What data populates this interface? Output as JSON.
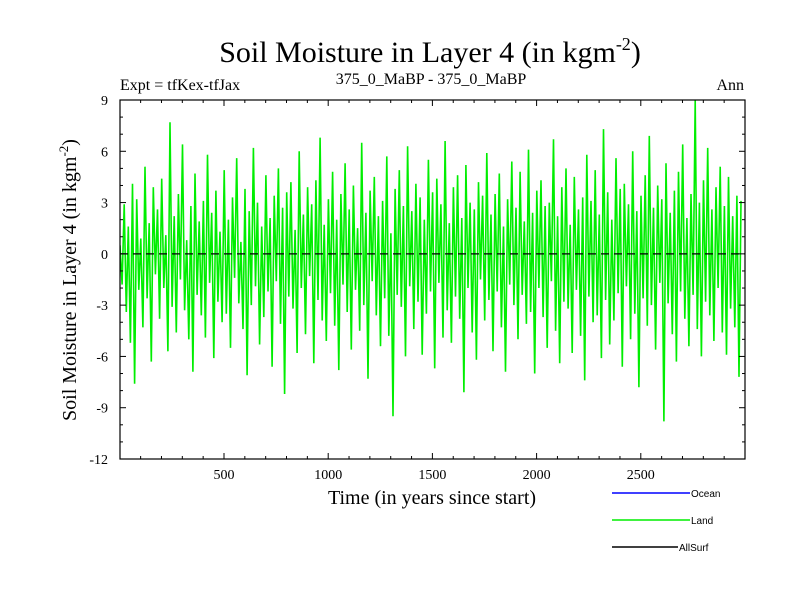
{
  "chart_data": {
    "type": "line",
    "title": "Soil Moisture in Layer 4 (in kgm",
    "title_superscript": "-2",
    "title_tail": ")",
    "subtitle_left": "Expt = tfKex-tfJax",
    "subtitle_center": "375_0_MaBP - 375_0_MaBP",
    "subtitle_right": "Ann",
    "xlabel": "Time (in years since start)",
    "ylabel": "Soil Moisture in Layer 4 (in kgm",
    "ylabel_superscript": "-2",
    "ylabel_tail": ")",
    "xlim": [
      1,
      3000
    ],
    "ylim": [
      -12,
      9
    ],
    "x_ticks": [
      500,
      1000,
      1500,
      2000,
      2500
    ],
    "y_ticks": [
      -12,
      -9,
      -6,
      -3,
      0,
      3,
      6,
      9
    ],
    "zero_line": "dashed",
    "legend_placement": "bottom-right",
    "series": [
      {
        "name": "Ocean",
        "color": "#0000ff",
        "values": []
      },
      {
        "name": "Land",
        "color": "#00ee00",
        "x_start": 1,
        "x_step": 10,
        "values": [
          0.5,
          -1.8,
          2.9,
          -3.4,
          1.6,
          -5.2,
          4.1,
          -7.6,
          3.2,
          -2.1,
          0.9,
          -4.3,
          5.1,
          -2.6,
          1.8,
          -6.3,
          3.9,
          -1.2,
          2.6,
          -3.8,
          4.4,
          -2.0,
          1.1,
          -5.7,
          7.7,
          -3.1,
          2.2,
          -4.6,
          3.5,
          -1.5,
          6.4,
          -3.3,
          0.8,
          -5.0,
          2.8,
          -6.9,
          4.7,
          -2.4,
          1.9,
          -3.6,
          3.1,
          -4.9,
          5.8,
          -1.7,
          2.4,
          -6.1,
          3.7,
          -2.8,
          1.3,
          -4.0,
          4.9,
          -3.5,
          2.0,
          -5.5,
          3.3,
          -1.4,
          5.6,
          -2.9,
          0.7,
          -4.4,
          3.8,
          -7.1,
          2.5,
          -3.0,
          6.2,
          -1.9,
          3.0,
          -5.3,
          1.6,
          -3.7,
          4.6,
          -2.2,
          2.1,
          -6.6,
          3.4,
          -1.6,
          5.0,
          -4.1,
          2.7,
          -8.2,
          3.6,
          -2.5,
          4.2,
          -3.2,
          1.4,
          -5.8,
          6.0,
          -2.0,
          2.3,
          -4.7,
          3.9,
          -1.3,
          2.9,
          -6.4,
          4.3,
          -2.7,
          6.8,
          -3.9,
          1.7,
          -5.1,
          3.2,
          -2.3,
          4.8,
          -4.2,
          2.0,
          -6.8,
          3.5,
          -1.8,
          5.3,
          -3.4,
          2.6,
          -5.6,
          4.0,
          -2.1,
          1.5,
          -4.5,
          6.5,
          -3.0,
          2.4,
          -7.3,
          3.7,
          -1.6,
          4.5,
          -3.6,
          2.2,
          -5.4,
          3.1,
          -2.6,
          5.7,
          -4.8,
          1.2,
          -9.5,
          3.8,
          -2.4,
          4.9,
          -3.1,
          2.8,
          -6.0,
          6.3,
          -1.9,
          2.5,
          -4.4,
          4.1,
          -2.8,
          3.3,
          -5.9,
          2.0,
          -3.5,
          5.5,
          -2.2,
          3.6,
          -6.7,
          4.4,
          -1.7,
          2.9,
          -4.9,
          6.6,
          -3.3,
          1.8,
          -5.2,
          3.9,
          -2.5,
          4.6,
          -3.8,
          2.1,
          -8.1,
          5.2,
          -2.0,
          3.0,
          -4.6,
          2.6,
          -6.2,
          4.2,
          -1.5,
          3.4,
          -3.9,
          5.9,
          -2.7,
          2.3,
          -5.7,
          3.5,
          -2.2,
          4.7,
          -4.3,
          1.6,
          -6.9,
          3.2,
          -1.8,
          5.4,
          -3.0,
          2.7,
          -5.0,
          4.8,
          -2.4,
          1.9,
          -4.1,
          6.1,
          -3.4,
          2.4,
          -7.0,
          3.7,
          -2.0,
          4.3,
          -3.7,
          2.8,
          -5.5,
          3.0,
          -1.6,
          6.7,
          -4.5,
          2.2,
          -6.4,
          3.9,
          -2.8,
          5.0,
          -3.2,
          1.7,
          -5.8,
          4.5,
          -2.1,
          2.6,
          -4.8,
          3.3,
          -7.4,
          5.8,
          -2.5,
          3.1,
          -4.0,
          4.9,
          -3.6,
          2.3,
          -6.1,
          7.3,
          -2.7,
          3.6,
          -5.3,
          2.0,
          -3.9,
          5.6,
          -2.3,
          3.8,
          -6.6,
          4.1,
          -1.9,
          2.9,
          -5.0,
          6.0,
          -3.5,
          2.5,
          -7.8,
          3.4,
          -2.6,
          4.6,
          -4.2,
          6.9,
          -3.0,
          2.7,
          -5.6,
          4.0,
          -1.7,
          3.2,
          -9.8,
          5.3,
          -2.9,
          2.4,
          -4.7,
          3.7,
          -6.3,
          4.8,
          -2.2,
          6.4,
          -3.8,
          2.1,
          -5.4,
          3.5,
          -2.4,
          9.0,
          -4.4,
          3.0,
          -6.0,
          4.3,
          -2.8,
          6.2,
          -3.6,
          2.6,
          -5.1,
          3.9,
          -2.0,
          5.1,
          -4.6,
          2.8,
          -5.9,
          4.5,
          -3.2,
          2.2,
          -4.3,
          3.4,
          -7.2,
          3.1
        ]
      },
      {
        "name": "AllSurf",
        "color": "#000000",
        "values": []
      }
    ]
  }
}
